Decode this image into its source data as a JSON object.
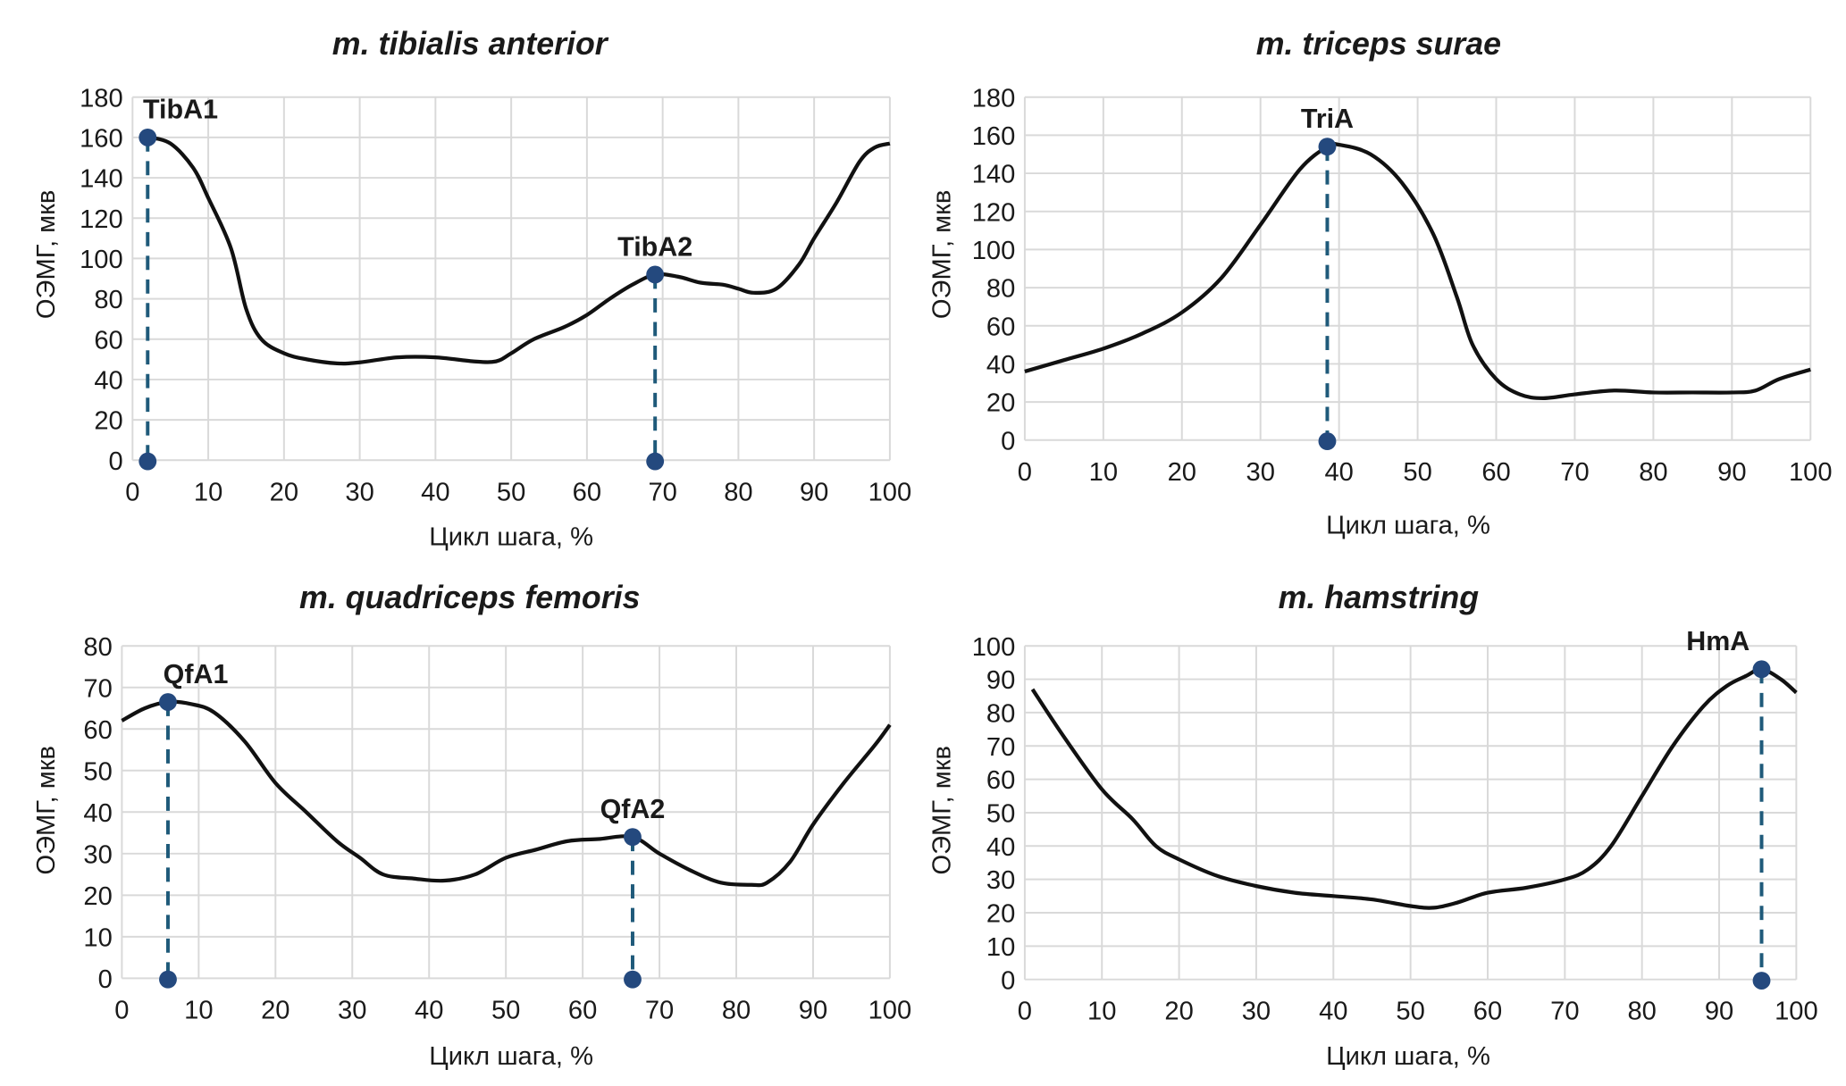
{
  "colors": {
    "curve": "#111111",
    "marker": "#24497e",
    "dropline": "#1f5a7a",
    "grid": "#d9d9d9"
  },
  "chart_data": [
    {
      "type": "line",
      "title": "m. tibialis anterior",
      "xlabel": "Цикл шага, %",
      "ylabel": "ОЭМГ, мкв",
      "xlim": [
        0,
        100
      ],
      "ylim": [
        0,
        180
      ],
      "xstep": 10,
      "ystep": 20,
      "grid": true,
      "x": [
        1,
        2,
        5,
        8,
        10,
        13,
        15,
        17,
        20,
        23,
        27,
        30,
        35,
        40,
        45,
        48,
        50,
        53,
        57,
        60,
        63,
        66,
        69,
        72,
        75,
        78,
        80,
        82,
        85,
        88,
        90,
        93,
        96,
        98,
        100
      ],
      "y": [
        159,
        160,
        157,
        145,
        130,
        105,
        75,
        60,
        53,
        50,
        48,
        48.5,
        51,
        51,
        49,
        49,
        53,
        60,
        66,
        72,
        80,
        87,
        92,
        91,
        88,
        87,
        85,
        83,
        85,
        97,
        110,
        128,
        148,
        155,
        157
      ],
      "markers": [
        {
          "label": "TibA1",
          "x": 2,
          "y": 160
        },
        {
          "label": "TibA2",
          "x": 69,
          "y": 92
        }
      ]
    },
    {
      "type": "line",
      "title": "m. triceps surae",
      "xlabel": "Цикл шага, %",
      "ylabel": "ОЭМГ, мкв",
      "xlim": [
        0,
        100
      ],
      "ylim": [
        0,
        180
      ],
      "xstep": 10,
      "ystep": 20,
      "grid": true,
      "x": [
        0,
        5,
        10,
        15,
        20,
        25,
        30,
        35,
        38.5,
        40,
        44,
        48,
        52,
        55,
        57,
        60,
        63,
        66,
        70,
        75,
        80,
        85,
        90,
        93,
        96,
        100
      ],
      "y": [
        36,
        42,
        48,
        56,
        67,
        85,
        113,
        142,
        154,
        155,
        150,
        135,
        108,
        75,
        50,
        32,
        24,
        22,
        24,
        26,
        25,
        25,
        25,
        26,
        32,
        37
      ],
      "markers": [
        {
          "label": "TriA",
          "x": 38.5,
          "y": 154
        }
      ]
    },
    {
      "type": "line",
      "title": "m. quadriceps femoris",
      "xlabel": "Цикл шага, %",
      "ylabel": "ОЭМГ, мкв",
      "xlim": [
        0,
        100
      ],
      "ylim": [
        0,
        80
      ],
      "xstep": 10,
      "ystep": 10,
      "grid": true,
      "x": [
        0,
        3,
        6,
        9,
        12,
        16,
        20,
        24,
        28,
        31,
        34,
        38,
        42,
        46,
        50,
        54,
        58,
        62,
        66.5,
        70,
        74,
        78,
        82,
        84,
        87,
        90,
        94,
        98,
        100
      ],
      "y": [
        62,
        65,
        66.5,
        66,
        64,
        57,
        47,
        40,
        33,
        29,
        25,
        24,
        23.5,
        25,
        29,
        31,
        33,
        33.5,
        34,
        30,
        26,
        23,
        22.5,
        23,
        28,
        37,
        47,
        56,
        61
      ],
      "markers": [
        {
          "label": "QfA1",
          "x": 6,
          "y": 66.5
        },
        {
          "label": "QfA2",
          "x": 66.5,
          "y": 34
        }
      ]
    },
    {
      "type": "line",
      "title": "m. hamstring",
      "xlabel": "Цикл шага, %",
      "ylabel": "ОЭМГ, мкв",
      "xlim": [
        0,
        100
      ],
      "ylim": [
        0,
        100
      ],
      "xstep": 10,
      "ystep": 10,
      "grid": true,
      "x": [
        1,
        5,
        10,
        14,
        17,
        20,
        25,
        30,
        35,
        40,
        45,
        50,
        53,
        56,
        60,
        65,
        70,
        73,
        76,
        80,
        84,
        88,
        91,
        93.5,
        95.5,
        98,
        100
      ],
      "y": [
        87,
        73,
        57,
        48,
        40,
        36,
        31,
        28,
        26,
        25,
        24,
        22,
        21.5,
        23,
        26,
        27.5,
        30,
        33,
        40,
        55,
        70,
        82,
        88,
        91,
        93,
        90,
        86
      ],
      "markers": [
        {
          "label": "HmA",
          "x": 95.5,
          "y": 93
        }
      ]
    }
  ]
}
